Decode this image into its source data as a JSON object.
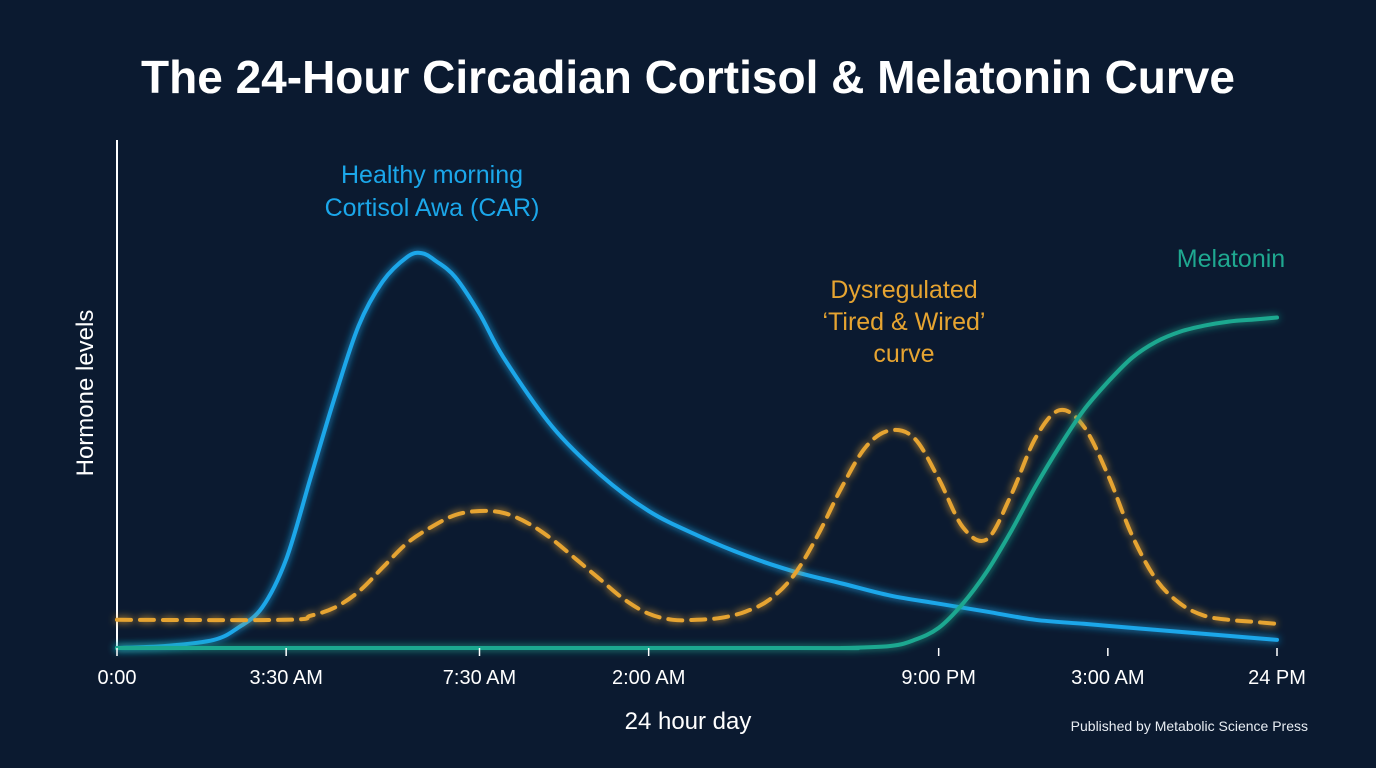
{
  "chart_data": {
    "type": "line",
    "title": "The 24-Hour Circadian Cortisol & Melatonin Curve",
    "xlabel": "24 hour day",
    "ylabel": "Hormone levels",
    "x_tick_labels": [
      {
        "x": 0,
        "label": "0:00"
      },
      {
        "x": 3.5,
        "label": "3:30 AM"
      },
      {
        "x": 7.5,
        "label": "7:30 AM"
      },
      {
        "x": 11,
        "label": "2:00 AM"
      },
      {
        "x": 17,
        "label": "9:00 PM"
      },
      {
        "x": 20.5,
        "label": "3:00 AM"
      },
      {
        "x": 24,
        "label": "24 PM"
      }
    ],
    "xlim": [
      0,
      24
    ],
    "ylim": [
      0,
      100
    ],
    "grid": false,
    "series": [
      {
        "name": "Healthy morning Cortisol Awa (CAR)",
        "color": "#1ba7ea",
        "style": "solid",
        "x": [
          0,
          1,
          2,
          2.5,
          3,
          3.5,
          4,
          4.5,
          5,
          5.5,
          6,
          6.3,
          6.6,
          7,
          7.5,
          8,
          9,
          10,
          11,
          12,
          13,
          14,
          15,
          16,
          17,
          18,
          19,
          20,
          21,
          22,
          23,
          24
        ],
        "y": [
          0,
          0.5,
          2,
          5,
          10,
          22,
          42,
          62,
          80,
          91,
          97,
          98,
          96,
          92,
          83,
          72,
          55,
          43,
          34,
          28,
          23,
          19,
          16,
          13,
          11,
          9,
          7,
          6,
          5,
          4,
          3,
          2
        ]
      },
      {
        "name": "Dysregulated ‘Tired & Wired’ curve",
        "color": "#e6a431",
        "style": "dashed",
        "x": [
          0,
          3.5,
          4,
          4.5,
          5,
          5.5,
          6,
          6.5,
          7,
          7.5,
          8,
          8.5,
          9,
          9.5,
          10,
          10.5,
          11,
          11.5,
          12,
          12.5,
          13,
          13.5,
          14,
          14.5,
          15,
          15.5,
          16,
          16.5,
          17,
          17.5,
          18,
          18.5,
          19,
          19.5,
          20,
          20.5,
          21,
          21.5,
          22,
          22.5,
          23,
          23.5,
          24
        ],
        "y": [
          7,
          7,
          8,
          10,
          14,
          20,
          26,
          30,
          33,
          34,
          33.5,
          31,
          27,
          22,
          17,
          12,
          8.5,
          7,
          7,
          7.5,
          9,
          12,
          18,
          28,
          40,
          50,
          54,
          52,
          42,
          30,
          27,
          38,
          52,
          59,
          55,
          43,
          28,
          17,
          11,
          8,
          7,
          6.5,
          6
        ]
      },
      {
        "name": "Dysregulated baseline",
        "color": "#e6a431",
        "style": "dashed",
        "x": [
          0,
          12.5
        ],
        "y": [
          7,
          7
        ]
      },
      {
        "name": "Melatonin",
        "color": "#1fa890",
        "style": "solid",
        "x": [
          0,
          14,
          15,
          16,
          16.5,
          17,
          17.5,
          18,
          18.5,
          19,
          19.5,
          20,
          20.5,
          21,
          21.5,
          22,
          22.5,
          23,
          23.5,
          24
        ],
        "y": [
          0,
          0,
          0,
          0.5,
          2,
          5,
          11,
          19,
          29,
          40,
          50,
          59,
          66,
          72,
          76,
          78.5,
          80,
          81,
          81.5,
          82
        ]
      }
    ],
    "annotations": [
      {
        "lines": [
          "Healthy morning",
          "Cortisol Awa (CAR)"
        ],
        "color": "#1ba7ea"
      },
      {
        "lines": [
          "Dysregulated",
          "‘Tired & Wired’",
          "curve"
        ],
        "color": "#e6a431"
      },
      {
        "lines": [
          "Melatonin"
        ],
        "color": "#1fa890"
      }
    ]
  },
  "credit": "Published by Metabolic Science Press"
}
